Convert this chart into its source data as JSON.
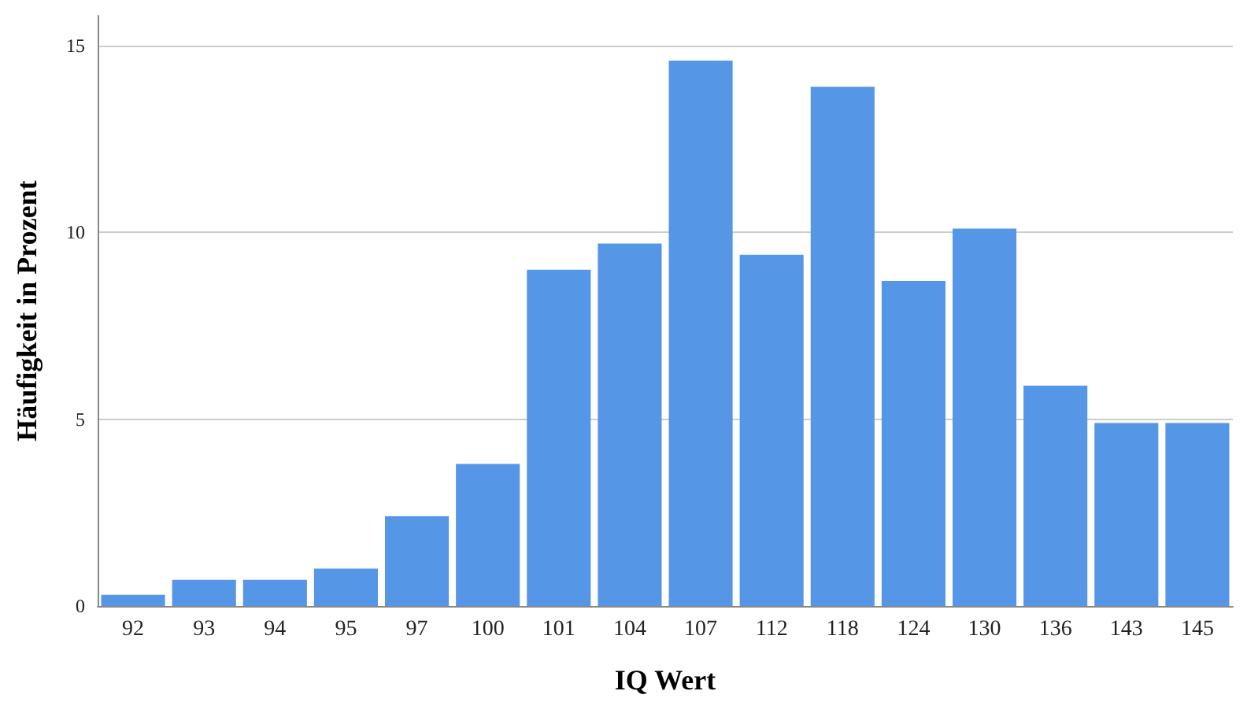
{
  "chart_data": {
    "type": "bar",
    "xlabel": "IQ Wert",
    "ylabel": "Häufigkeit in Prozent",
    "categories": [
      "92",
      "93",
      "94",
      "95",
      "97",
      "100",
      "101",
      "104",
      "107",
      "112",
      "118",
      "124",
      "130",
      "136",
      "143",
      "145"
    ],
    "values": [
      0.3,
      0.7,
      0.7,
      1.0,
      2.4,
      3.8,
      9.0,
      9.7,
      14.6,
      9.4,
      13.9,
      8.7,
      10.1,
      5.9,
      4.9,
      4.9
    ],
    "color": "#5596e6",
    "ylim": [
      0,
      15.8
    ],
    "yticks": [
      0,
      5,
      10,
      15
    ],
    "grid": "y"
  }
}
